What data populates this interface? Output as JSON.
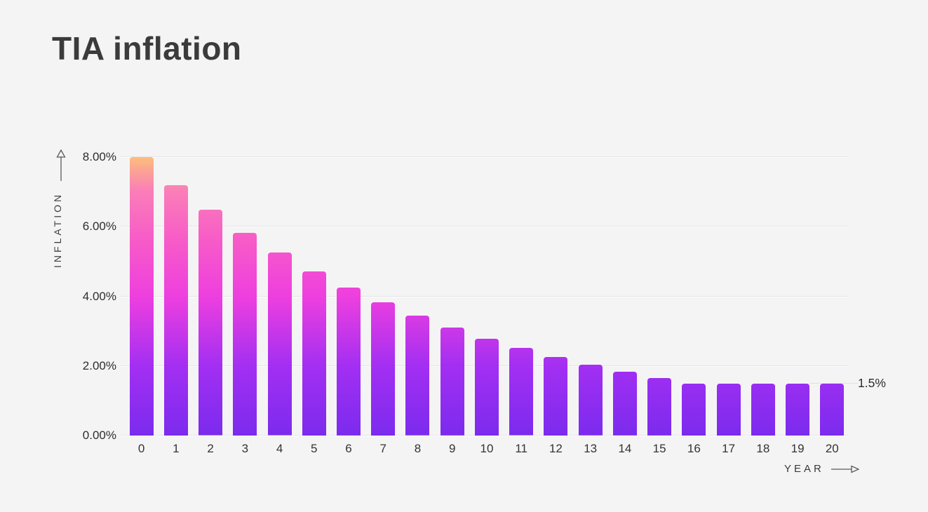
{
  "title": "TIA inflation",
  "colors": {
    "background": "#f5f4f5",
    "title_text": "#3b3b3b",
    "tick_text": "#2d2d2d",
    "gridline": "#e6e3e6",
    "axis_arrow": "#5a5a5a"
  },
  "chart_data": {
    "type": "bar",
    "title": "TIA inflation",
    "xlabel": "YEAR",
    "ylabel": "INFLATION",
    "categories": [
      "0",
      "1",
      "2",
      "3",
      "4",
      "5",
      "6",
      "7",
      "8",
      "9",
      "10",
      "11",
      "12",
      "13",
      "14",
      "15",
      "16",
      "17",
      "18",
      "19",
      "20"
    ],
    "values": [
      8.0,
      7.2,
      6.48,
      5.83,
      5.25,
      4.72,
      4.25,
      3.83,
      3.44,
      3.1,
      2.79,
      2.51,
      2.26,
      2.03,
      1.83,
      1.65,
      1.5,
      1.5,
      1.5,
      1.5,
      1.5
    ],
    "ylim": [
      0,
      8
    ],
    "yticks": [
      {
        "value": 8,
        "label": "8.00%"
      },
      {
        "value": 6,
        "label": "6.00%"
      },
      {
        "value": 4,
        "label": "4.00%"
      },
      {
        "value": 2,
        "label": "2.00%"
      },
      {
        "value": 0,
        "label": "0.00%"
      }
    ],
    "grid": true,
    "legend": null,
    "annotation": {
      "value": 1.5,
      "label": "1.5%"
    },
    "bar_gradient": [
      {
        "pos": 0.0,
        "color": "#7b2bee"
      },
      {
        "pos": 0.25,
        "color": "#a32ff2"
      },
      {
        "pos": 0.5,
        "color": "#ee3fdf"
      },
      {
        "pos": 0.7,
        "color": "#f75bc8"
      },
      {
        "pos": 0.88,
        "color": "#fa7eb8"
      },
      {
        "pos": 1.0,
        "color": "#fcbd7b"
      }
    ]
  }
}
